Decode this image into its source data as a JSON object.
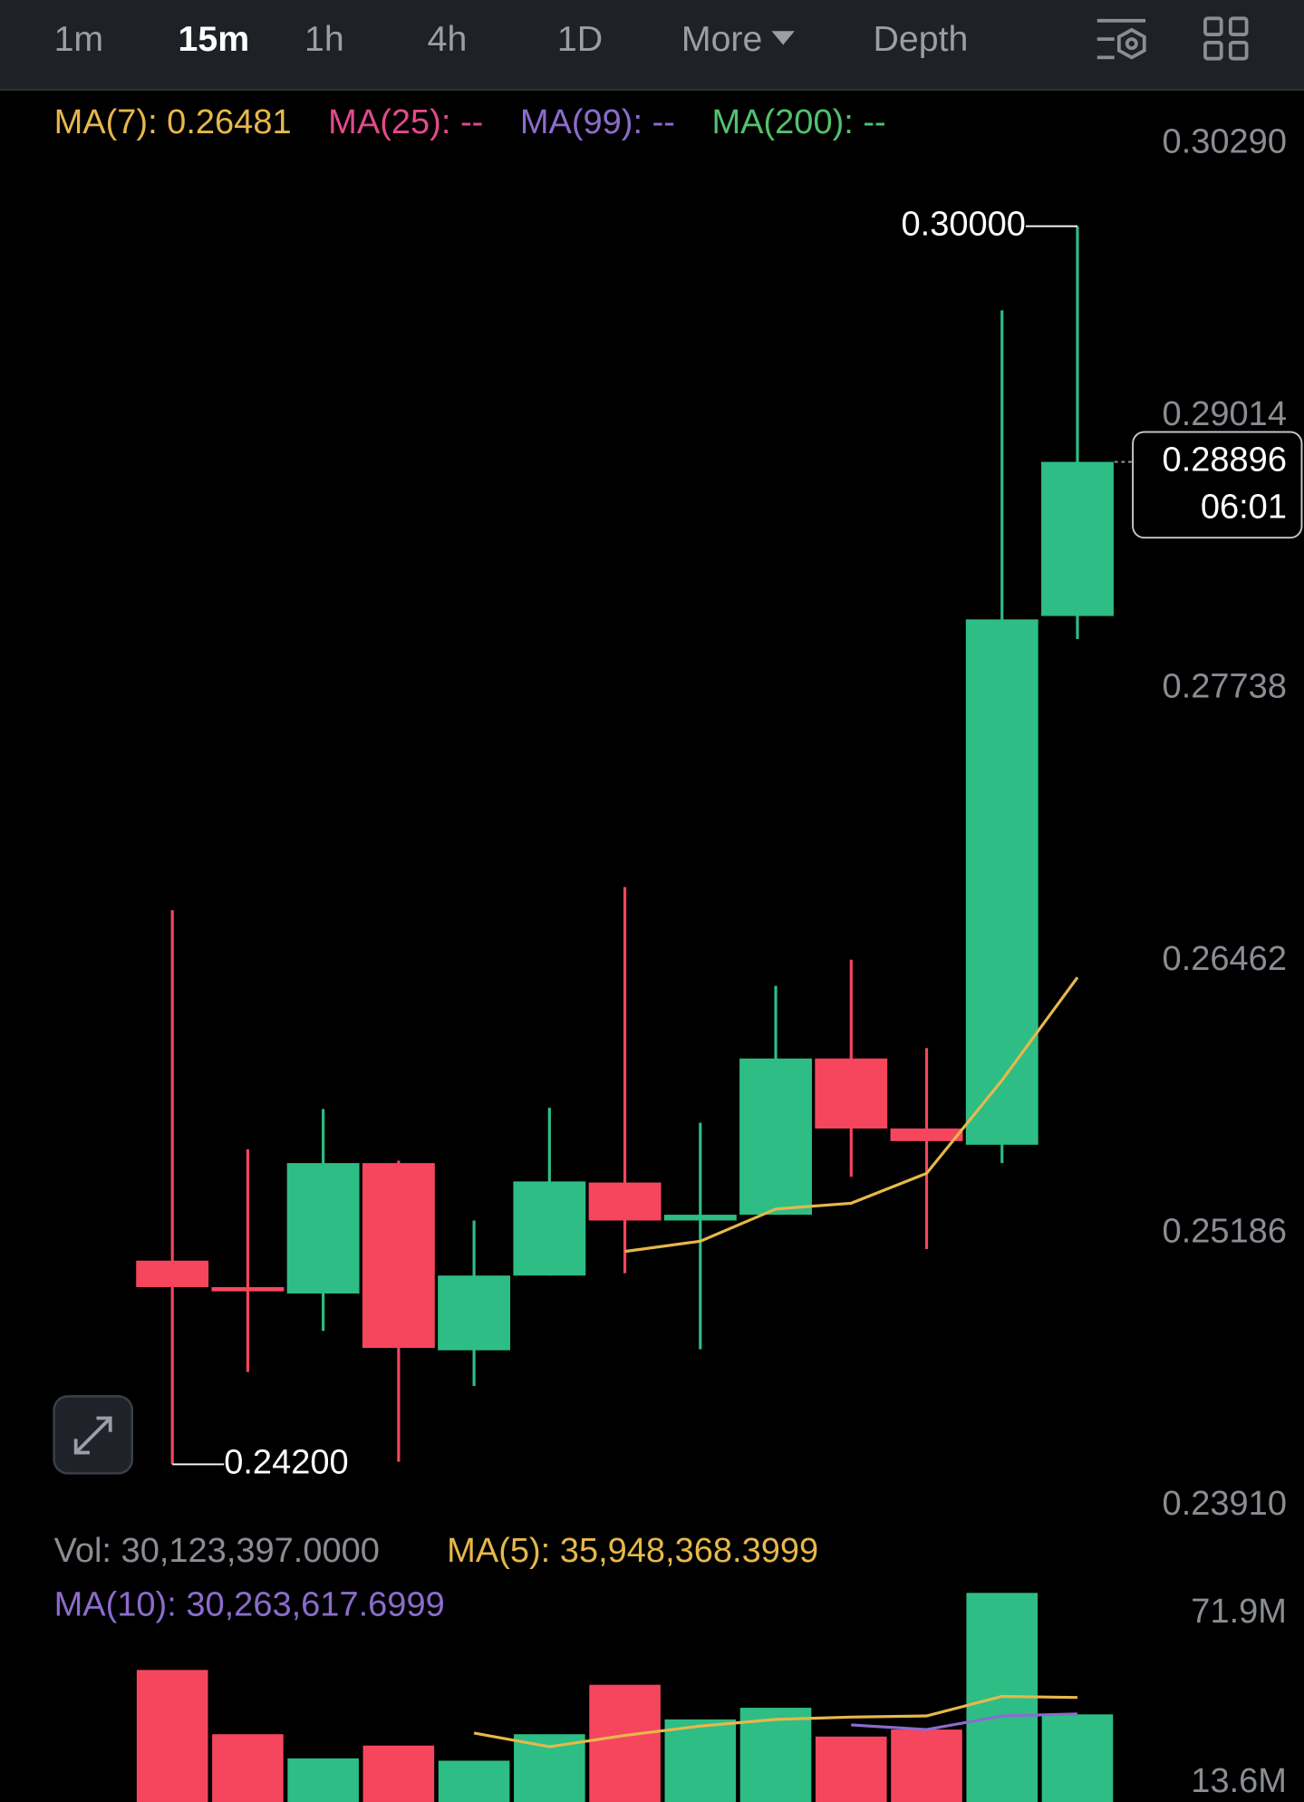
{
  "toolbar": {
    "tabs": [
      "1m",
      "15m",
      "1h",
      "4h",
      "1D",
      "More",
      "Depth"
    ],
    "active": "15m"
  },
  "chart_data": [
    {
      "type": "candlestick",
      "legend": [
        {
          "text": "MA(7): 0.26481",
          "color": "#e6b84b"
        },
        {
          "text": "MA(25): --",
          "color": "#e24a8c"
        },
        {
          "text": "MA(99): --",
          "color": "#8c6ccc"
        },
        {
          "text": "MA(200): --",
          "color": "#52c26e"
        }
      ],
      "up_color": "#2ebd85",
      "down_color": "#f6465d",
      "open": [
        0.25154,
        0.2503,
        0.25,
        0.25611,
        0.24734,
        0.25084,
        0.2552,
        0.25342,
        0.25369,
        0.26101,
        0.25773,
        0.25697,
        0.28174
      ],
      "high": [
        0.26796,
        0.25676,
        0.25864,
        0.25622,
        0.25342,
        0.2587,
        0.26904,
        0.258,
        0.26441,
        0.26564,
        0.2615,
        0.29606,
        0.3
      ],
      "low": [
        0.242,
        0.24632,
        0.24825,
        0.24212,
        0.24567,
        0.25084,
        0.25095,
        0.24739,
        0.25369,
        0.25547,
        0.25208,
        0.25611,
        0.28066
      ],
      "close": [
        0.2503,
        0.2501,
        0.25611,
        0.24745,
        0.25084,
        0.25525,
        0.25342,
        0.25369,
        0.26101,
        0.25773,
        0.25714,
        0.28158,
        0.28896
      ],
      "series": [
        {
          "name": "MA(7)",
          "color": "#e6b84b",
          "values": [
            null,
            null,
            null,
            null,
            null,
            null,
            0.25197,
            0.25245,
            0.25396,
            0.25423,
            0.25563,
            0.25999,
            0.26481
          ]
        }
      ],
      "ylim": [
        0.2391,
        0.30629
      ],
      "yticks": [
        {
          "value": 0.3029,
          "label": "0.30290"
        },
        0.29014,
        0.27738,
        0.26462,
        0.25186,
        {
          "value": 0.2391,
          "label": "0.23910"
        }
      ],
      "high_label": {
        "value": 0.3,
        "label": "0.30000"
      },
      "low_label": {
        "value": 0.242,
        "label": "0.24200"
      },
      "last_price": {
        "value": 0.28896,
        "label": "0.28896",
        "countdown": "06:01"
      }
    },
    {
      "type": "bar",
      "legend": [
        {
          "text": "Vol: 30,123,397.0000",
          "color": "#8a8d93"
        },
        {
          "text": "MA(5): 35,948,368.3999",
          "color": "#e6b84b"
        },
        {
          "text": "MA(10): 30,263,617.6999",
          "color": "#8c6ccc"
        }
      ],
      "values": [
        45.4,
        23.3,
        15.0,
        19.4,
        14.2,
        23.3,
        40.3,
        28.4,
        32.4,
        22.5,
        24.9,
        71.9,
        30.123397
      ],
      "series": [
        {
          "name": "MA(5)",
          "color": "#e6b84b",
          "values": [
            null,
            null,
            null,
            null,
            23.7,
            19.0,
            22.9,
            26.1,
            28.4,
            29.2,
            29.6,
            36.3,
            35.948368
          ]
        },
        {
          "name": "MA(10)",
          "color": "#8c6ccc",
          "values": [
            null,
            null,
            null,
            null,
            null,
            null,
            null,
            null,
            null,
            26.5,
            24.9,
            29.6,
            30.263618
          ]
        }
      ],
      "ylim": [
        0,
        73.5
      ],
      "yticks": [
        {
          "value": 71.9,
          "label": "71.9M"
        },
        {
          "value": 13.6,
          "label": "13.6M"
        }
      ]
    }
  ]
}
